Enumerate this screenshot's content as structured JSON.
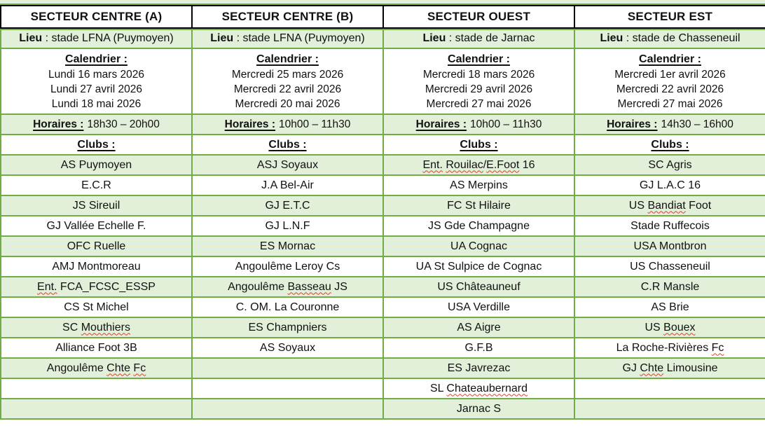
{
  "colors": {
    "row_fill_green": "#e2efd9",
    "grid_border_green": "#70ad47",
    "header_border_black": "#000000",
    "spellcheck_squiggle_red": "#e23b2e",
    "text": "#111111"
  },
  "sectors": [
    {
      "title": "SECTEUR CENTRE (A)",
      "lieu_label": "Lieu",
      "lieu_rest": " : stade LFNA (Puymoyen)",
      "calendrier_label": "Calendrier :",
      "dates": [
        "Lundi 16 mars 2026",
        "Lundi 27 avril 2026",
        "Lundi 18 mai 2026"
      ],
      "horaires_label": "Horaires :",
      "horaires_value": "18h30 – 20h00",
      "clubs_label": "Clubs :",
      "clubs": [
        [
          {
            "t": "AS Puymoyen",
            "sq": false
          }
        ],
        [
          {
            "t": "E.C.R",
            "sq": false
          }
        ],
        [
          {
            "t": "JS Sireuil",
            "sq": false
          }
        ],
        [
          {
            "t": "GJ Vallée Echelle F.",
            "sq": false
          }
        ],
        [
          {
            "t": "OFC Ruelle",
            "sq": false
          }
        ],
        [
          {
            "t": "AMJ Montmoreau",
            "sq": false
          }
        ],
        [
          {
            "t": "Ent.",
            "sq": true
          },
          {
            "t": " FCA_FCSC_ESSP",
            "sq": false
          }
        ],
        [
          {
            "t": "CS St Michel",
            "sq": false
          }
        ],
        [
          {
            "t": "SC ",
            "sq": false
          },
          {
            "t": "Mouthiers",
            "sq": true
          }
        ],
        [
          {
            "t": "Alliance Foot 3B",
            "sq": false
          }
        ],
        [
          {
            "t": "Angoulême ",
            "sq": false
          },
          {
            "t": "Chte",
            "sq": true
          },
          {
            "t": " ",
            "sq": false
          },
          {
            "t": "Fc",
            "sq": true
          }
        ],
        [],
        []
      ]
    },
    {
      "title": "SECTEUR CENTRE (B)",
      "lieu_label": "Lieu",
      "lieu_rest": " : stade LFNA (Puymoyen)",
      "calendrier_label": "Calendrier :",
      "dates": [
        "Mercredi 25 mars 2026",
        "Mercredi 22 avril 2026",
        "Mercredi 20 mai 2026"
      ],
      "horaires_label": "Horaires :",
      "horaires_value": "10h00 – 11h30",
      "clubs_label": "Clubs :",
      "clubs": [
        [
          {
            "t": "ASJ Soyaux",
            "sq": false
          }
        ],
        [
          {
            "t": "J.A Bel-Air",
            "sq": false
          }
        ],
        [
          {
            "t": "GJ E.T.C",
            "sq": false
          }
        ],
        [
          {
            "t": "GJ L.N.F",
            "sq": false
          }
        ],
        [
          {
            "t": "ES Mornac",
            "sq": false
          }
        ],
        [
          {
            "t": "Angoulême Leroy Cs",
            "sq": false
          }
        ],
        [
          {
            "t": "Angoulême ",
            "sq": false
          },
          {
            "t": "Basseau",
            "sq": true
          },
          {
            "t": " JS",
            "sq": false
          }
        ],
        [
          {
            "t": "C. OM. La Couronne",
            "sq": false
          }
        ],
        [
          {
            "t": "ES Champniers",
            "sq": false
          }
        ],
        [
          {
            "t": "AS Soyaux",
            "sq": false
          }
        ],
        [],
        [],
        []
      ]
    },
    {
      "title": "SECTEUR OUEST",
      "lieu_label": "Lieu",
      "lieu_rest": " : stade de Jarnac",
      "calendrier_label": "Calendrier :",
      "dates": [
        "Mercredi 18 mars 2026",
        "Mercredi 29 avril 2026",
        "Mercredi 27 mai 2026"
      ],
      "horaires_label": "Horaires :",
      "horaires_value": "10h00 – 11h30",
      "clubs_label": "Clubs :",
      "clubs": [
        [
          {
            "t": "Ent.",
            "sq": true
          },
          {
            "t": " ",
            "sq": false
          },
          {
            "t": "Rouilac",
            "sq": true
          },
          {
            "t": "/",
            "sq": false
          },
          {
            "t": "E.Foot",
            "sq": true
          },
          {
            "t": " 16",
            "sq": false
          }
        ],
        [
          {
            "t": "AS Merpins",
            "sq": false
          }
        ],
        [
          {
            "t": "FC St Hilaire",
            "sq": false
          }
        ],
        [
          {
            "t": "JS Gde Champagne",
            "sq": false
          }
        ],
        [
          {
            "t": "UA Cognac",
            "sq": false
          }
        ],
        [
          {
            "t": "UA St Sulpice de Cognac",
            "sq": false
          }
        ],
        [
          {
            "t": "US Châteauneuf",
            "sq": false
          }
        ],
        [
          {
            "t": "USA Verdille",
            "sq": false
          }
        ],
        [
          {
            "t": "AS Aigre",
            "sq": false
          }
        ],
        [
          {
            "t": "G.F.B",
            "sq": false
          }
        ],
        [
          {
            "t": "ES Javrezac",
            "sq": false
          }
        ],
        [
          {
            "t": "SL ",
            "sq": false
          },
          {
            "t": "Chateaubernard",
            "sq": true
          }
        ],
        [
          {
            "t": "Jarnac S",
            "sq": false
          }
        ]
      ]
    },
    {
      "title": "SECTEUR EST",
      "lieu_label": "Lieu",
      "lieu_rest": " : stade de Chasseneuil",
      "calendrier_label": "Calendrier :",
      "dates": [
        "Mercredi 1er avril 2026",
        "Mercredi 22 avril 2026",
        "Mercredi 27 mai 2026"
      ],
      "horaires_label": "Horaires :",
      "horaires_value": "14h30 – 16h00",
      "clubs_label": "Clubs :",
      "clubs": [
        [
          {
            "t": "SC Agris",
            "sq": false
          }
        ],
        [
          {
            "t": "GJ L.A.C 16",
            "sq": false
          }
        ],
        [
          {
            "t": "US ",
            "sq": false
          },
          {
            "t": "Bandiat",
            "sq": true
          },
          {
            "t": " Foot",
            "sq": false
          }
        ],
        [
          {
            "t": "Stade Ruffecois",
            "sq": false
          }
        ],
        [
          {
            "t": "USA Montbron",
            "sq": false
          }
        ],
        [
          {
            "t": "US Chasseneuil",
            "sq": false
          }
        ],
        [
          {
            "t": "C.R Mansle",
            "sq": false
          }
        ],
        [
          {
            "t": "AS Brie",
            "sq": false
          }
        ],
        [
          {
            "t": "US ",
            "sq": false
          },
          {
            "t": "Bouex",
            "sq": true
          }
        ],
        [
          {
            "t": "La Roche-Rivières ",
            "sq": false
          },
          {
            "t": "Fc",
            "sq": true
          }
        ],
        [
          {
            "t": "GJ ",
            "sq": false
          },
          {
            "t": "Chte",
            "sq": true
          },
          {
            "t": " Limousine",
            "sq": false
          }
        ],
        [],
        []
      ]
    }
  ]
}
